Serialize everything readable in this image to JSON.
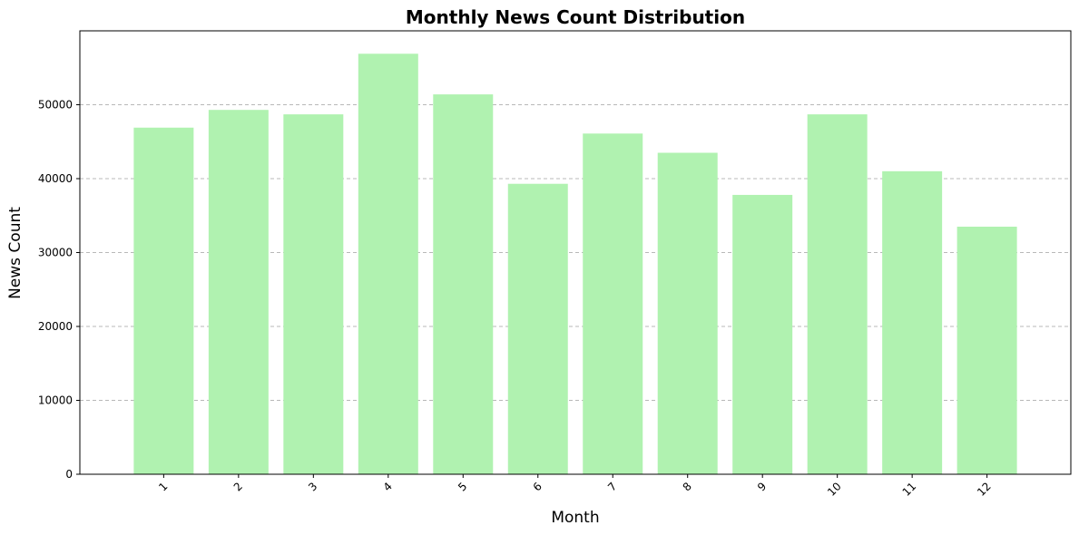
{
  "colors": {
    "bar": "#b0f2b0",
    "grid": "#b8b8b8",
    "axis": "#000000",
    "background": "#ffffff"
  },
  "chart_data": {
    "type": "bar",
    "title": "Monthly News Count Distribution",
    "xlabel": "Month",
    "ylabel": "News Count",
    "categories": [
      "1",
      "2",
      "3",
      "4",
      "5",
      "6",
      "7",
      "8",
      "9",
      "10",
      "11",
      "12"
    ],
    "values": [
      46900,
      49300,
      48700,
      56900,
      51400,
      39300,
      46100,
      43500,
      37800,
      48700,
      41000,
      33500
    ],
    "ylim": [
      0,
      60000
    ],
    "yticks": [
      0,
      10000,
      20000,
      30000,
      40000,
      50000
    ],
    "ytick_labels": [
      "0",
      "10000",
      "20000",
      "30000",
      "40000",
      "50000"
    ],
    "grid": "y-dashed",
    "xtick_rotation": 45
  }
}
